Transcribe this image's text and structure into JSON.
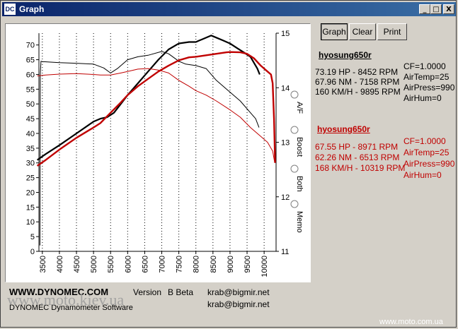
{
  "window": {
    "icon_text": "DC",
    "title": "Graph",
    "controls": {
      "minimize": "_",
      "maximize": "□",
      "close": "X"
    }
  },
  "toolbar": {
    "graph": "Graph",
    "clear": "Clear",
    "print": "Print"
  },
  "runs": [
    {
      "name": "hyosung650r",
      "color": "#000000",
      "stats": [
        "73.19 HP - 8452 RPM",
        "67.96 NM - 7158 RPM",
        "160 KM/H - 9895 RPM"
      ],
      "conditions": [
        "CF=1.0000",
        "AirTemp=25",
        "AirPress=990",
        "AirHum=0"
      ]
    },
    {
      "name": "hyosung650r",
      "color": "#c00000",
      "stats": [
        "67.55 HP - 8971 RPM",
        "62.26 NM - 6513 RPM",
        "168 KM/H - 10319 RPM"
      ],
      "conditions": [
        "CF=1.0000",
        "AirTemp=25",
        "AirPress=990",
        "AirHum=0"
      ]
    }
  ],
  "options": [
    {
      "label": "A/F"
    },
    {
      "label": "Boost"
    },
    {
      "label": "Both"
    },
    {
      "label": "Memo"
    }
  ],
  "footer": {
    "brand": "WWW.DYNOMEC.COM",
    "version_label": "Version",
    "version_value": "B Beta",
    "email1": "krab@bigmir.net",
    "email2": "krab@bigmir.net",
    "software": "DYNOMEC Dynamometer Software"
  },
  "watermarks": {
    "left": "www.moto.kiev.ua",
    "right": "www.moto.com.ua"
  },
  "chart_data": {
    "type": "line",
    "x_ticks": [
      3500,
      4000,
      4500,
      5000,
      5500,
      6000,
      6500,
      7000,
      7500,
      8000,
      8500,
      9000,
      9500,
      10000
    ],
    "y_left_ticks": [
      0,
      5,
      10,
      15,
      20,
      25,
      30,
      35,
      40,
      45,
      50,
      55,
      60,
      65,
      70
    ],
    "y_right_ticks": [
      11,
      12,
      13,
      14,
      15
    ],
    "xlim": [
      3400,
      10350
    ],
    "ylim_left": [
      0,
      74
    ],
    "ylim_right": [
      11,
      15
    ],
    "grid": "vertical-dotted",
    "series": [
      {
        "color": "#000000",
        "width": 2.2,
        "x": [
          3350,
          3600,
          4000,
          4500,
          5000,
          5200,
          5400,
          5600,
          5800,
          6000,
          6300,
          6600,
          6900,
          7200,
          7500,
          7800,
          8000,
          8100,
          8200,
          8450,
          8600,
          8800,
          9000,
          9200,
          9400,
          9600,
          9800,
          9870
        ],
        "y": [
          31,
          33,
          36,
          40,
          44,
          45,
          45.5,
          47,
          50,
          53,
          57,
          61,
          65,
          68.5,
          70.5,
          71,
          71,
          71.5,
          72,
          73.2,
          72.5,
          71.5,
          70.5,
          69,
          67.5,
          66,
          62,
          60
        ]
      },
      {
        "color": "#000000",
        "width": 1,
        "x": [
          3430,
          3440,
          3460,
          3520,
          3580,
          4000,
          4500,
          5000,
          5300,
          5500,
          5700,
          6000,
          6300,
          6600,
          7000,
          7200,
          7500,
          7700,
          8000,
          8300,
          8600,
          9000,
          9300,
          9600,
          9750,
          9850
        ],
        "y": [
          2,
          60,
          64.5,
          64.3,
          64.3,
          64,
          63.8,
          63.5,
          62.2,
          60.5,
          62,
          65,
          66,
          66.5,
          67.8,
          67,
          64.5,
          63.5,
          63,
          62,
          58,
          54,
          51,
          47,
          45,
          42
        ]
      },
      {
        "color": "#c00000",
        "width": 2.4,
        "x": [
          3350,
          3600,
          4000,
          4500,
          5000,
          5200,
          5500,
          5800,
          6000,
          6300,
          6600,
          6900,
          7200,
          7500,
          7800,
          8000,
          8300,
          8600,
          8900,
          9000,
          9300,
          9500,
          9700,
          9900,
          10000,
          10100,
          10200,
          10250,
          10290,
          10320
        ],
        "y": [
          29,
          31,
          34.5,
          38.5,
          42,
          43.5,
          47,
          50.5,
          53,
          56,
          58.5,
          61,
          63,
          64.8,
          65.8,
          66,
          66.5,
          67,
          67.5,
          67.6,
          67.5,
          67,
          65.5,
          63,
          62,
          61,
          60,
          57,
          45,
          30
        ]
      },
      {
        "color": "#c00000",
        "width": 1,
        "x": [
          3350,
          3600,
          4000,
          4500,
          5000,
          5200,
          5500,
          5800,
          6000,
          6300,
          6600,
          6900,
          7200,
          7500,
          7800,
          8000,
          8300,
          8600,
          9000,
          9300,
          9600,
          9900,
          10100,
          10250,
          10310
        ],
        "y": [
          59.5,
          59.8,
          60.1,
          60.3,
          60,
          59.8,
          59.8,
          60.5,
          61,
          61.8,
          62,
          61.5,
          60.5,
          58,
          56,
          54.5,
          53,
          51,
          48,
          45.5,
          42,
          39,
          37,
          34,
          30
        ]
      }
    ]
  }
}
